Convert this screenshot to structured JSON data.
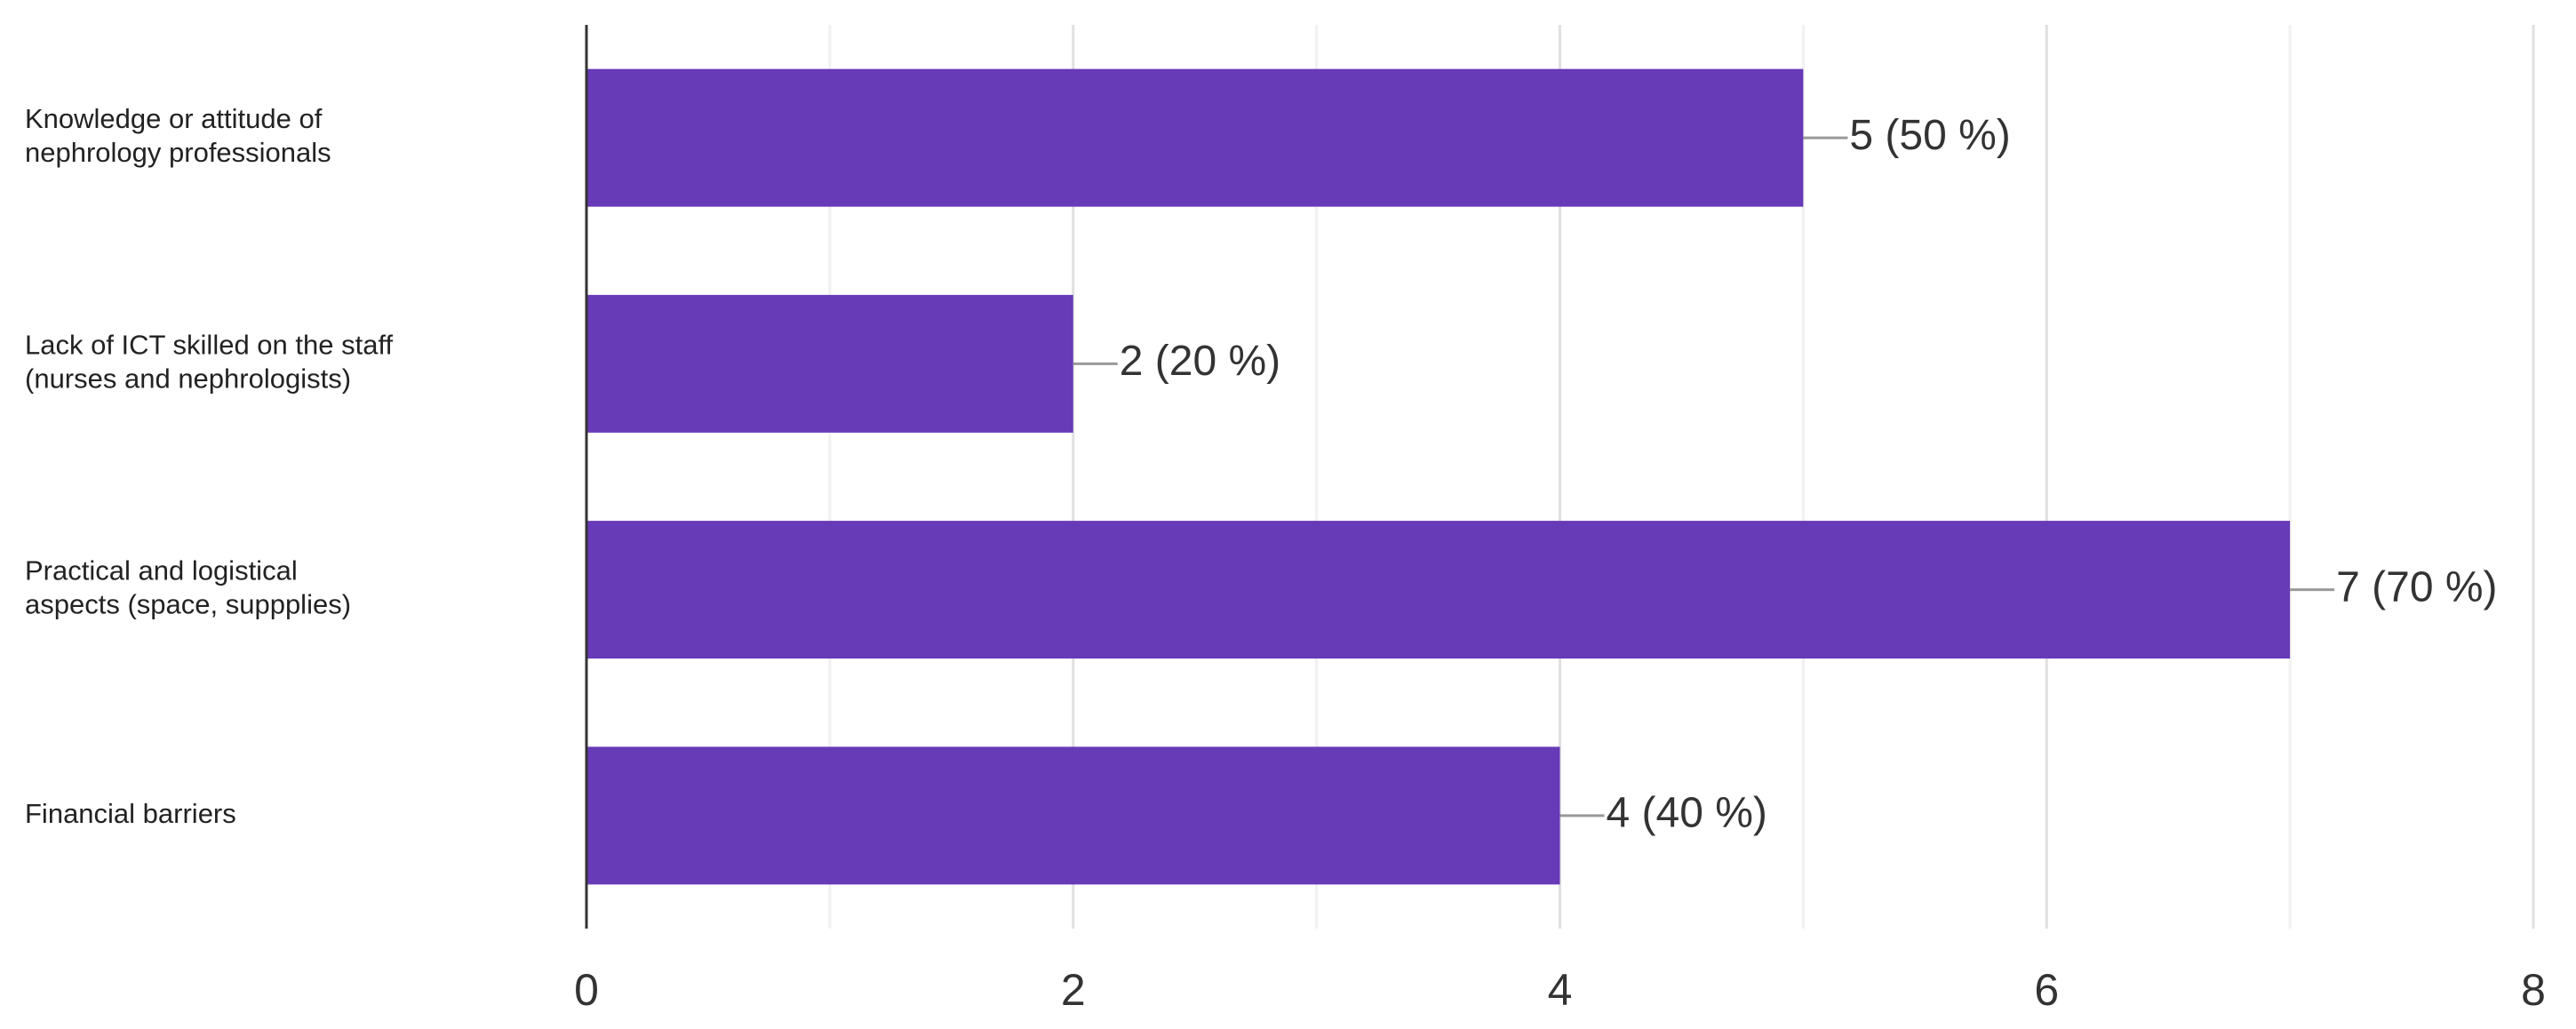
{
  "chart_data": {
    "type": "bar",
    "orientation": "horizontal",
    "categories": [
      [
        "Knowledge or attitude of",
        "nephrology professionals"
      ],
      [
        "Lack of ICT skilled on the staff",
        "(nurses and nephrologists)"
      ],
      [
        "Practical and logistical",
        "aspects (space, suppplies)"
      ],
      [
        "Financial barriers"
      ]
    ],
    "values": [
      5,
      2,
      7,
      4
    ],
    "value_labels": [
      "5 (50 %)",
      "2 (20 %)",
      "7 (70 %)",
      "4 (40 %)"
    ],
    "color": "#673ab7",
    "xlim": [
      0,
      8
    ],
    "xticks": [
      0,
      2,
      4,
      6,
      8
    ],
    "minor_xticks": [
      1,
      3,
      5,
      7
    ],
    "grid": true
  }
}
